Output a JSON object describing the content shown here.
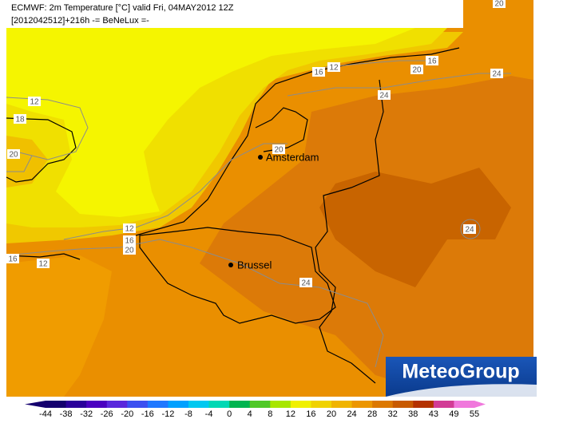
{
  "header": {
    "line1": "ECMWF: 2m Temperature [°C] valid Fri, 04MAY2012 12Z",
    "line2": "[2012042512]+216h -= BeNeLux =-"
  },
  "cities": [
    "Amsterdam",
    "Brussel"
  ],
  "contour_labels": [
    "20",
    "12",
    "16",
    "16",
    "20",
    "24",
    "24",
    "12",
    "18",
    "20",
    "20",
    "24",
    "12",
    "16",
    "20",
    "16",
    "12",
    "24"
  ],
  "colorbar": {
    "labels": [
      -44,
      -38,
      -32,
      -26,
      -20,
      -16,
      -12,
      -8,
      -4,
      0,
      4,
      8,
      12,
      16,
      20,
      24,
      28,
      32,
      38,
      43,
      49,
      55
    ],
    "colors": [
      "#14006e",
      "#2a009a",
      "#4a00c0",
      "#5a28dc",
      "#3c50f0",
      "#2078ff",
      "#00a0ff",
      "#00c8f0",
      "#00d8b4",
      "#00b450",
      "#50c828",
      "#a8e600",
      "#f0f000",
      "#f0d200",
      "#f0b400",
      "#ec9600",
      "#dc7800",
      "#c85a00",
      "#b43200",
      "#d23c96",
      "#f078dc"
    ]
  },
  "logo": "MeteoGroup"
}
